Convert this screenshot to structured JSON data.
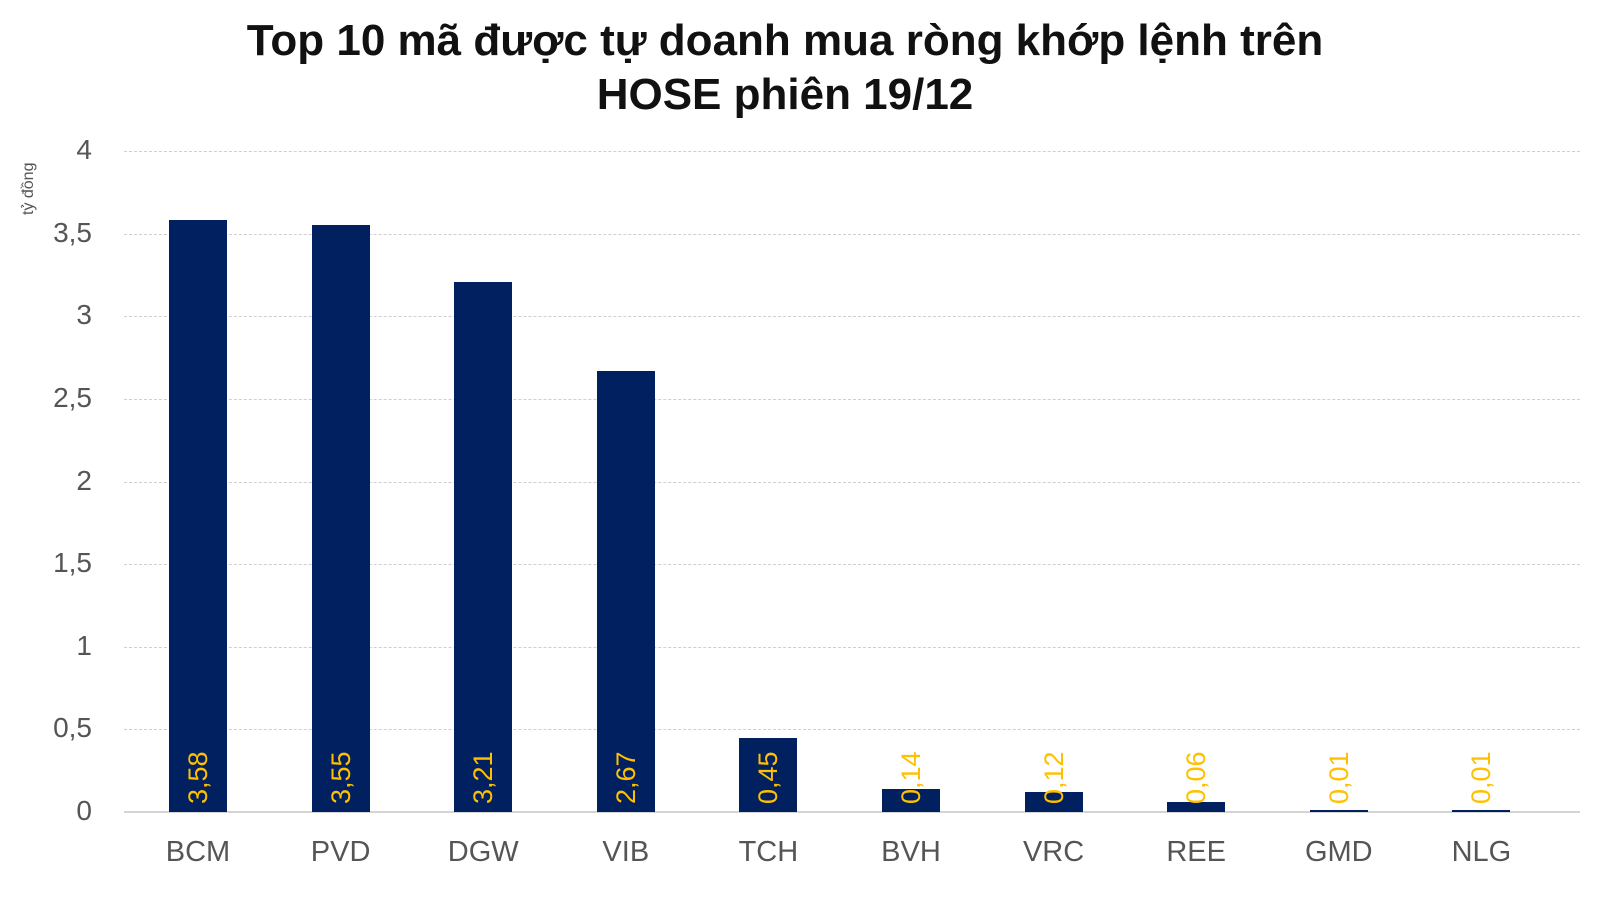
{
  "chart_data": {
    "type": "bar",
    "title": "Top 10 mã được tự doanh mua ròng khớp lệnh trên HOSE phiên 19/12",
    "title_lines": [
      "Top 10 mã được tự doanh mua ròng khớp lệnh trên",
      "HOSE phiên 19/12"
    ],
    "xlabel": "",
    "ylabel": "tỷ đồng",
    "ylim": [
      0,
      4
    ],
    "yticks": [
      "0",
      "0,5",
      "1",
      "1,5",
      "2",
      "2,5",
      "3",
      "3,5",
      "4"
    ],
    "grid": true,
    "legend": "none",
    "categories": [
      "BCM",
      "PVD",
      "DGW",
      "VIB",
      "TCH",
      "BVH",
      "VRC",
      "REE",
      "GMD",
      "NLG"
    ],
    "values": [
      3.58,
      3.55,
      3.21,
      2.67,
      0.45,
      0.14,
      0.12,
      0.06,
      0.01,
      0.01
    ],
    "value_labels": [
      "3,58",
      "3,55",
      "3,21",
      "2,67",
      "0,45",
      "0,14",
      "0,12",
      "0,06",
      "0,01",
      "0,01"
    ],
    "colors": {
      "bar": "#00205f",
      "data_label": "#ffc000",
      "axis_text": "#555555",
      "title": "#111111"
    }
  }
}
